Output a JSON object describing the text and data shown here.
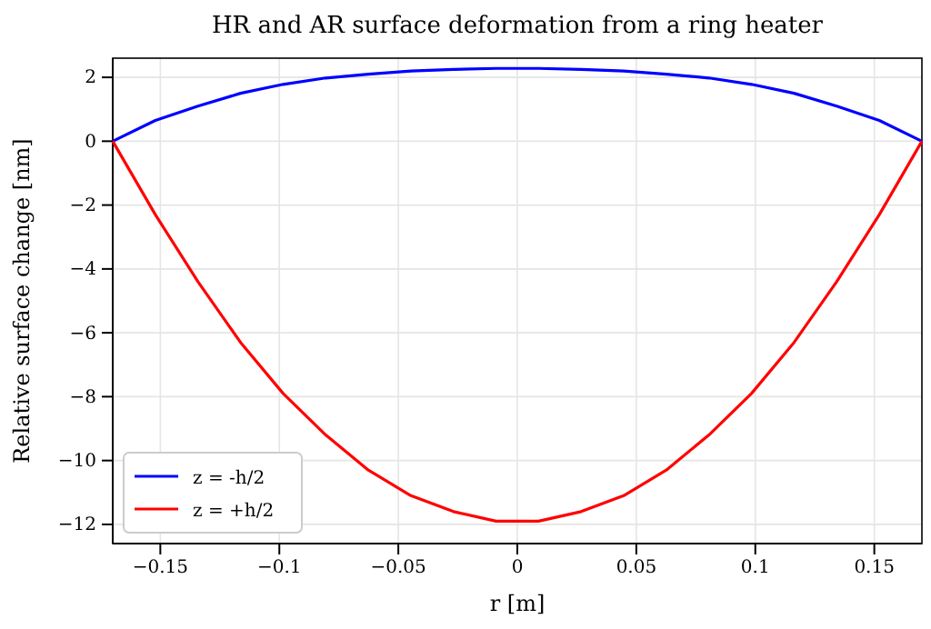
{
  "chart_data": {
    "type": "line",
    "title": "HR and AR surface deformation from a ring heater",
    "xlabel": "r [m]",
    "ylabel": "Relative surface change [nm]",
    "x": [
      -0.17,
      -0.1521,
      -0.1342,
      -0.1163,
      -0.0984,
      -0.0805,
      -0.0626,
      -0.0447,
      -0.0268,
      -0.0089,
      0.0089,
      0.0268,
      0.0447,
      0.0626,
      0.0805,
      0.0984,
      0.1163,
      0.1342,
      0.1521,
      0.17
    ],
    "series": [
      {
        "name": "z = -h/2",
        "color": "#0000ff",
        "values": [
          0,
          0.65,
          1.1,
          1.5,
          1.78,
          1.98,
          2.1,
          2.2,
          2.25,
          2.28,
          2.28,
          2.25,
          2.2,
          2.1,
          1.98,
          1.78,
          1.5,
          1.1,
          0.65,
          0
        ]
      },
      {
        "name": "z = +h/2",
        "color": "#ff0000",
        "values": [
          0,
          -2.3,
          -4.4,
          -6.3,
          -7.9,
          -9.2,
          -10.3,
          -11.1,
          -11.6,
          -11.9,
          -11.9,
          -11.6,
          -11.1,
          -10.3,
          -9.2,
          -7.9,
          -6.3,
          -4.4,
          -2.3,
          0
        ]
      }
    ],
    "xlim": [
      -0.17,
      0.17
    ],
    "xticks": [
      -0.15,
      -0.1,
      -0.05,
      0,
      0.05,
      0.1,
      0.15
    ],
    "ylim": [
      -12.6,
      2.6
    ],
    "yticks": [
      2,
      0,
      -2,
      -4,
      -6,
      -8,
      -10,
      -12
    ],
    "grid": true,
    "legend": "bottom left"
  }
}
